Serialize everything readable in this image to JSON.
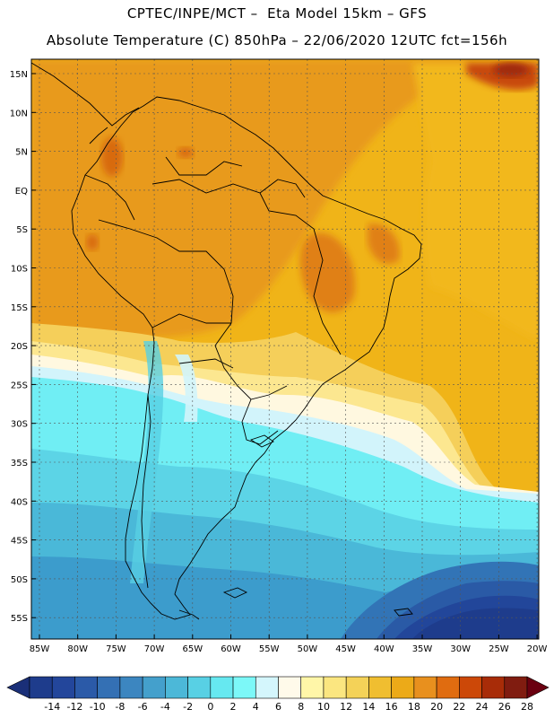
{
  "header": {
    "title_line1": "CPTEC/INPE/MCT –  Eta Model 15km – GFS",
    "title_line2": "Absolute Temperature (C) 850hPa – 22/06/2020 12UTC fct=156h"
  },
  "map": {
    "lat_labels": [
      "15N",
      "10N",
      "5N",
      "EQ",
      "5S",
      "10S",
      "15S",
      "20S",
      "25S",
      "30S",
      "35S",
      "40S",
      "45S",
      "50S",
      "55S"
    ],
    "lon_labels": [
      "85W",
      "80W",
      "75W",
      "70W",
      "65W",
      "60W",
      "55W",
      "50W",
      "45W",
      "40W",
      "35W",
      "30W",
      "25W",
      "20W"
    ]
  },
  "colorbar": {
    "ticks": [
      "-14",
      "-12",
      "-10",
      "-8",
      "-6",
      "-4",
      "-2",
      "0",
      "2",
      "4",
      "6",
      "8",
      "10",
      "12",
      "14",
      "16",
      "18",
      "20",
      "22",
      "24",
      "26",
      "28"
    ],
    "colors": [
      "#1e3c8c",
      "#23469b",
      "#2b5aa8",
      "#3470b4",
      "#3c86c0",
      "#44a0cc",
      "#4cb8d8",
      "#58d0e4",
      "#66e8f0",
      "#7cf8f8",
      "#d4f6fc",
      "#fffaea",
      "#fff6a8",
      "#fbe680",
      "#f4d258",
      "#f0be30",
      "#ecaa18",
      "#e8901e",
      "#e06c10",
      "#cc4808",
      "#a82c08",
      "#801c10"
    ],
    "left_arrow": "#1a2f78",
    "right_arrow": "#6a0010"
  }
}
